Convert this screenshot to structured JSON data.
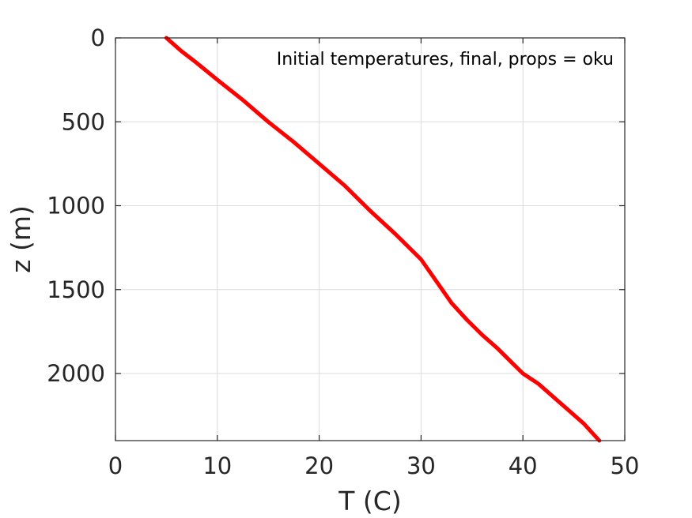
{
  "chart_data": {
    "type": "line",
    "title": "",
    "annotation": "Initial temperatures, final, props = oku",
    "xlabel": "T (C)",
    "ylabel": "z (m)",
    "xlim": [
      0,
      50
    ],
    "ylim": [
      0,
      2400
    ],
    "y_reversed": true,
    "xticks": [
      0,
      10,
      20,
      30,
      40,
      50
    ],
    "yticks": [
      0,
      500,
      1000,
      1500,
      2000
    ],
    "grid": true,
    "series": [
      {
        "color": "#ff0000",
        "x": [
          5.0,
          6.5,
          8.0,
          10.0,
          12.5,
          15.0,
          17.5,
          20.0,
          22.5,
          25.0,
          27.5,
          30.0,
          31.5,
          33.0,
          34.5,
          36.0,
          37.5,
          39.0,
          40.0,
          41.5,
          43.0,
          44.5,
          46.0,
          47.5
        ],
        "y": [
          0,
          80,
          150,
          250,
          370,
          500,
          620,
          750,
          880,
          1030,
          1170,
          1320,
          1450,
          1580,
          1680,
          1770,
          1850,
          1940,
          2000,
          2060,
          2140,
          2220,
          2300,
          2400
        ]
      }
    ]
  }
}
